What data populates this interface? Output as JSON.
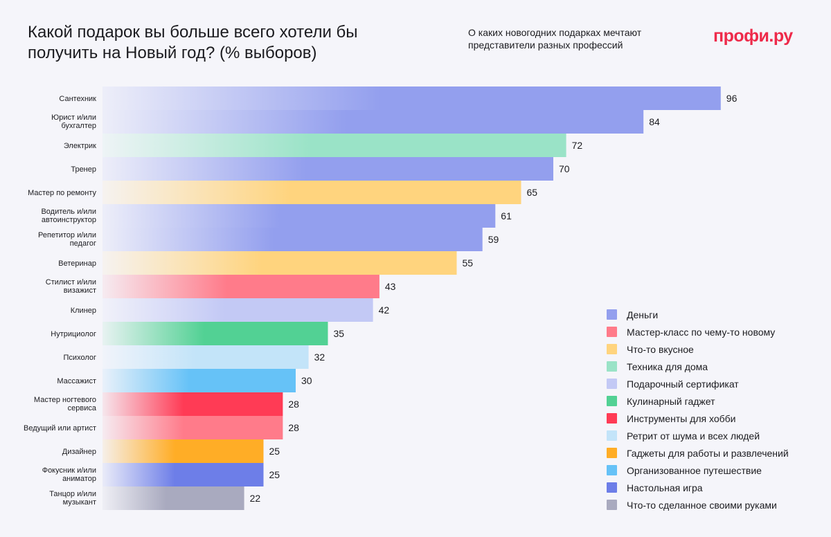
{
  "header": {
    "title": "Какой подарок вы больше всего хотели бы получить на Новый год? (% выборов)",
    "subtitle": "О каких новогодних подарках мечтают представители разных профессий",
    "logo": "профи.ру"
  },
  "categories_colors": {
    "Деньги": "#939fee",
    "Мастер-класс по чему-то новому": "#ff7b8a",
    "Что-то вкусное": "#ffd47e",
    "Техника для дома": "#9ae3c7",
    "Подарочный сертификат": "#c3c9f5",
    "Кулинарный гаджет": "#52d194",
    "Инструменты для хобби": "#ff3b55",
    "Ретрит от шума и всех людей": "#c3e4f9",
    "Гаджеты для работы и развлечений": "#ffad26",
    "Организованное путешествие": "#66c2f7",
    "Настольная игра": "#6d7ee8",
    "Что-то сделанное своими руками": "#a9aabf"
  },
  "chart_data": {
    "type": "bar",
    "orientation": "horizontal",
    "title": "Какой подарок вы больше всего хотели бы получить на Новый год? (% выборов)",
    "categories": [
      "Сантехник",
      "Юрист и/или бухгалтер",
      "Электрик",
      "Тренер",
      "Мастер по ремонту",
      "Водитель и/или автоинструктор",
      "Репетитор и/или педагог",
      "Ветеринар",
      "Стилист и/или визажист",
      "Клинер",
      "Нутрициолог",
      "Психолог",
      "Массажист",
      "Мастер ногтевого сервиса",
      "Ведущий или артист",
      "Дизайнер",
      "Фокусник и/или аниматор",
      "Танцор и/или музыкант"
    ],
    "category_lines": [
      [
        "Сантехник"
      ],
      [
        "Юрист и/или",
        "бухгалтер"
      ],
      [
        "Электрик"
      ],
      [
        "Тренер"
      ],
      [
        "Мастер по ремонту"
      ],
      [
        "Водитель и/или",
        "автоинструктор"
      ],
      [
        "Репетитор и/или",
        "педагог"
      ],
      [
        "Ветеринар"
      ],
      [
        "Стилист и/или",
        "визажист"
      ],
      [
        "Клинер"
      ],
      [
        "Нутрициолог"
      ],
      [
        "Психолог"
      ],
      [
        "Массажист"
      ],
      [
        "Мастер ногтевого",
        "сервиса"
      ],
      [
        "Ведущий или артист"
      ],
      [
        "Дизайнер"
      ],
      [
        "Фокусник и/или",
        "аниматор"
      ],
      [
        "Танцор и/или",
        "музыкант"
      ]
    ],
    "values": [
      96,
      84,
      72,
      70,
      65,
      61,
      59,
      55,
      43,
      42,
      35,
      32,
      30,
      28,
      28,
      25,
      25,
      22
    ],
    "value_labels": [
      "96",
      "84",
      "72",
      "70",
      "65",
      "61",
      "59",
      "55",
      "43",
      "42",
      "35",
      "32",
      "30",
      "28",
      "28",
      "25",
      "25",
      "22"
    ],
    "gift": [
      "Деньги",
      "Деньги",
      "Техника для дома",
      "Деньги",
      "Что-то вкусное",
      "Деньги",
      "Деньги",
      "Что-то вкусное",
      "Мастер-класс по чему-то новому",
      "Подарочный сертификат",
      "Кулинарный гаджет",
      "Ретрит от шума и всех людей",
      "Организованное путешествие",
      "Инструменты для хобби",
      "Мастер-класс по чему-то новому",
      "Гаджеты для работы и развлечений",
      "Настольная игра",
      "Что-то сделанное своими руками"
    ],
    "xlim": [
      0,
      96
    ],
    "legend": [
      "Деньги",
      "Мастер-класс по чему-то новому",
      "Что-то вкусное",
      "Техника для дома",
      "Подарочный сертификат",
      "Кулинарный гаджет",
      "Инструменты для хобби",
      "Ретрит от шума и всех людей",
      "Гаджеты для работы и развлечений",
      "Организованное путешествие",
      "Настольная игра",
      "Что-то сделанное своими руками"
    ],
    "legend_position": "bottom-right",
    "grid": false
  }
}
